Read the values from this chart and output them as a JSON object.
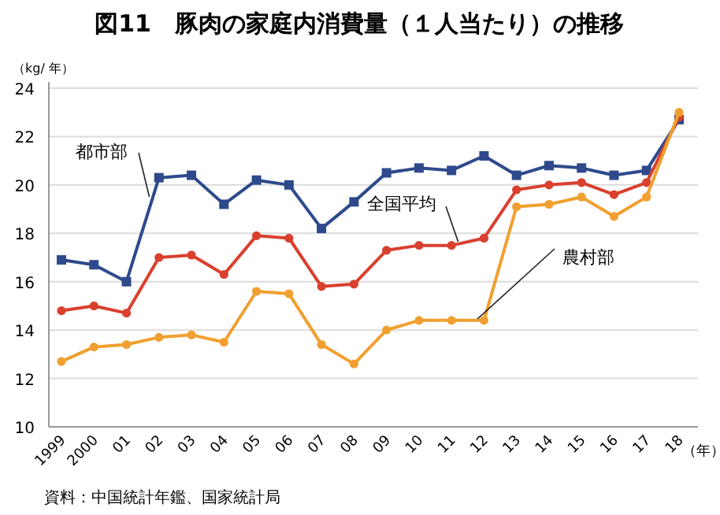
{
  "chart_data": {
    "type": "line",
    "title": "図11　豚肉の家庭内消費量（１人当たり）の推移",
    "ylabel": "（kg/ 年）",
    "xlabel": "（年）",
    "categories": [
      "1999",
      "2000",
      "01",
      "02",
      "03",
      "04",
      "05",
      "06",
      "07",
      "08",
      "09",
      "10",
      "11",
      "12",
      "13",
      "14",
      "15",
      "16",
      "17",
      "18"
    ],
    "series": [
      {
        "name": "都市部",
        "color": "#2e4a8c",
        "marker": "square",
        "values": [
          16.9,
          16.7,
          16.0,
          20.3,
          20.4,
          19.2,
          20.2,
          20.0,
          18.2,
          19.3,
          20.5,
          20.7,
          20.6,
          21.2,
          20.4,
          20.8,
          20.7,
          20.4,
          20.6,
          22.7
        ]
      },
      {
        "name": "全国平均",
        "color": "#d9402e",
        "marker": "circle",
        "values": [
          14.8,
          15.0,
          14.7,
          17.0,
          17.1,
          16.3,
          17.9,
          17.8,
          15.8,
          15.9,
          17.3,
          17.5,
          17.5,
          17.8,
          19.8,
          20.0,
          20.1,
          19.6,
          20.1,
          22.8
        ]
      },
      {
        "name": "農村部",
        "color": "#f0a030",
        "marker": "circle",
        "values": [
          12.7,
          13.3,
          13.4,
          13.7,
          13.8,
          13.5,
          15.6,
          15.5,
          13.4,
          12.6,
          14.0,
          14.4,
          14.4,
          14.4,
          19.1,
          19.2,
          19.5,
          18.7,
          19.5,
          23.0
        ]
      }
    ],
    "ylim": [
      10,
      24
    ],
    "yticks": [
      10,
      12,
      14,
      16,
      18,
      20,
      22,
      24
    ],
    "grid": "y",
    "line_style": "solid",
    "annotations": [
      "資料：中国統計年鑑、国家統計局"
    ]
  }
}
